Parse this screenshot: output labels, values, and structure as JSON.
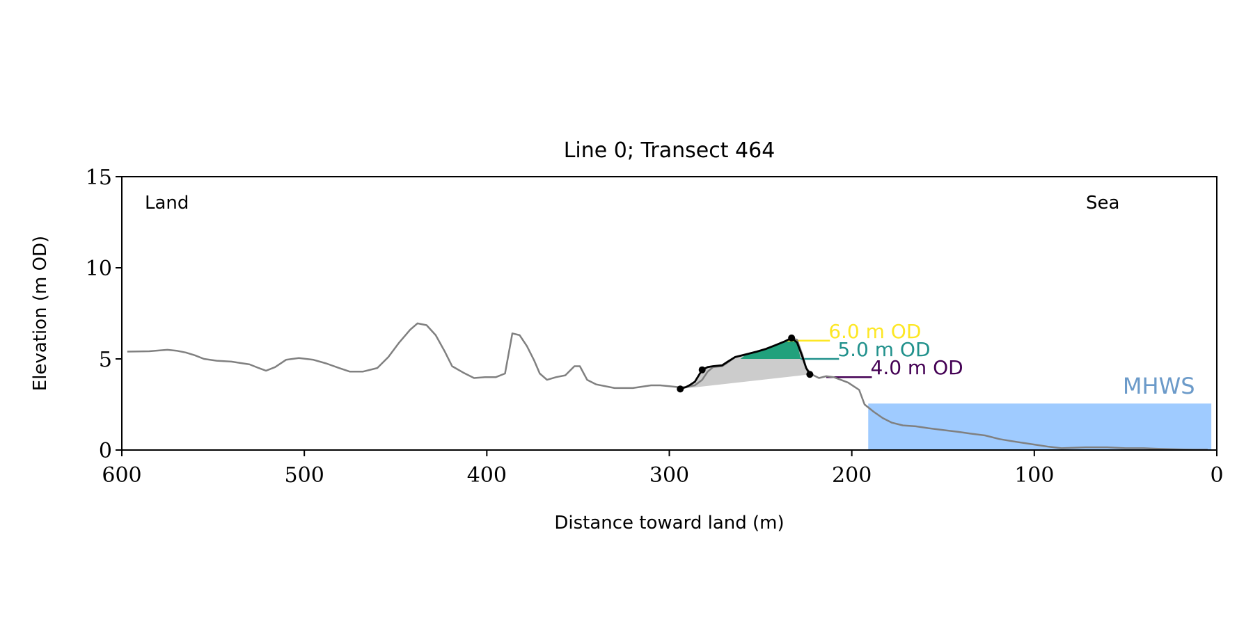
{
  "chart_data": {
    "type": "line",
    "title": "Line 0; Transect 464",
    "xlabel": "Distance toward land (m)",
    "ylabel": "Elevation (m OD)",
    "xlim": [
      600,
      0
    ],
    "ylim": [
      0,
      15
    ],
    "x_ticks": [
      600,
      500,
      400,
      300,
      200,
      100,
      0
    ],
    "y_ticks": [
      0,
      5,
      10,
      15
    ],
    "grid": false,
    "annotations": {
      "land": "Land",
      "sea": "Sea"
    },
    "profile": {
      "color": "#808080",
      "points": [
        [
          597,
          5.4
        ],
        [
          585,
          5.42
        ],
        [
          575,
          5.5
        ],
        [
          570,
          5.45
        ],
        [
          565,
          5.35
        ],
        [
          560,
          5.2
        ],
        [
          555,
          5.0
        ],
        [
          548,
          4.9
        ],
        [
          540,
          4.85
        ],
        [
          530,
          4.7
        ],
        [
          525,
          4.5
        ],
        [
          521,
          4.35
        ],
        [
          516,
          4.55
        ],
        [
          510,
          4.95
        ],
        [
          503,
          5.05
        ],
        [
          495,
          4.95
        ],
        [
          488,
          4.75
        ],
        [
          481,
          4.5
        ],
        [
          475,
          4.3
        ],
        [
          468,
          4.3
        ],
        [
          460,
          4.5
        ],
        [
          454,
          5.1
        ],
        [
          448,
          5.9
        ],
        [
          442,
          6.6
        ],
        [
          438,
          6.95
        ],
        [
          433,
          6.85
        ],
        [
          428,
          6.3
        ],
        [
          423,
          5.4
        ],
        [
          419,
          4.6
        ],
        [
          413,
          4.25
        ],
        [
          407,
          3.95
        ],
        [
          401,
          4.0
        ],
        [
          395,
          4.0
        ],
        [
          390,
          4.2
        ],
        [
          386,
          6.4
        ],
        [
          382,
          6.3
        ],
        [
          378,
          5.7
        ],
        [
          374,
          4.9
        ],
        [
          371,
          4.2
        ],
        [
          367,
          3.85
        ],
        [
          362,
          4.0
        ],
        [
          357,
          4.1
        ],
        [
          352,
          4.6
        ],
        [
          349,
          4.6
        ],
        [
          345,
          3.85
        ],
        [
          340,
          3.6
        ],
        [
          330,
          3.4
        ],
        [
          320,
          3.4
        ],
        [
          310,
          3.55
        ],
        [
          305,
          3.55
        ],
        [
          300,
          3.5
        ],
        [
          295,
          3.45
        ],
        [
          291,
          3.45
        ],
        [
          289,
          3.5
        ],
        [
          286,
          3.55
        ],
        [
          282,
          3.85
        ],
        [
          279,
          4.3
        ],
        [
          276,
          4.55
        ],
        [
          271,
          4.6
        ],
        [
          268,
          4.8
        ],
        [
          264,
          5.1
        ],
        [
          258,
          5.25
        ],
        [
          252,
          5.4
        ],
        [
          247,
          5.55
        ],
        [
          242,
          5.75
        ],
        [
          237,
          5.95
        ],
        [
          233,
          6.15
        ],
        [
          230,
          6.05
        ],
        [
          227,
          5.2
        ],
        [
          225,
          4.5
        ],
        [
          222,
          4.15
        ],
        [
          218,
          3.95
        ],
        [
          214,
          4.05
        ],
        [
          210,
          4.0
        ],
        [
          206,
          3.85
        ],
        [
          202,
          3.7
        ],
        [
          199,
          3.5
        ],
        [
          196,
          3.3
        ],
        [
          193,
          2.5
        ],
        [
          188,
          2.1
        ],
        [
          183,
          1.75
        ],
        [
          178,
          1.5
        ],
        [
          172,
          1.35
        ],
        [
          165,
          1.3
        ],
        [
          158,
          1.2
        ],
        [
          150,
          1.1
        ],
        [
          142,
          1.0
        ],
        [
          135,
          0.9
        ],
        [
          127,
          0.8
        ],
        [
          119,
          0.6
        ],
        [
          110,
          0.45
        ],
        [
          100,
          0.3
        ],
        [
          92,
          0.18
        ],
        [
          85,
          0.1
        ],
        [
          80,
          0.12
        ],
        [
          72,
          0.15
        ],
        [
          60,
          0.15
        ],
        [
          50,
          0.1
        ],
        [
          40,
          0.1
        ],
        [
          32,
          0.07
        ],
        [
          25,
          0.05
        ],
        [
          18,
          0.03
        ],
        [
          12,
          0.02
        ],
        [
          5,
          0.02
        ]
      ]
    },
    "dune": {
      "color": "#000000",
      "toe": [
        294,
        3.35
      ],
      "crest": [
        233,
        6.15
      ],
      "back": [
        223,
        4.15
      ],
      "marker_points": [
        [
          294,
          3.35
        ],
        [
          282,
          4.4
        ],
        [
          233,
          6.15
        ],
        [
          223,
          4.15
        ]
      ],
      "points": [
        [
          294,
          3.35
        ],
        [
          291,
          3.45
        ],
        [
          289,
          3.55
        ],
        [
          286,
          3.75
        ],
        [
          282,
          4.4
        ],
        [
          279,
          4.55
        ],
        [
          276,
          4.6
        ],
        [
          271,
          4.65
        ],
        [
          268,
          4.85
        ],
        [
          264,
          5.1
        ],
        [
          258,
          5.25
        ],
        [
          252,
          5.4
        ],
        [
          247,
          5.55
        ],
        [
          242,
          5.75
        ],
        [
          237,
          5.95
        ],
        [
          233,
          6.15
        ],
        [
          230,
          5.9
        ],
        [
          227,
          5.1
        ],
        [
          225,
          4.5
        ],
        [
          223,
          4.15
        ]
      ]
    },
    "fills": {
      "volume": {
        "color": "#cccccc",
        "base": [
          [
            294,
            3.35
          ],
          [
            223,
            4.15
          ]
        ]
      },
      "above_5m": {
        "level": 5.0,
        "x_range": [
          261,
          228
        ],
        "color": "#21a17c"
      }
    },
    "levels": [
      {
        "label": "6.0 m OD",
        "value": 6.0,
        "x_start": 236,
        "x_end": 212,
        "color": "#fde725"
      },
      {
        "label": "5.0 m OD",
        "value": 5.0,
        "x_start": 228,
        "x_end": 207,
        "color": "#21918c"
      },
      {
        "label": "4.0 m OD",
        "value": 4.0,
        "x_start": 214,
        "x_end": 189,
        "color": "#440154"
      }
    ],
    "mhws": {
      "label": "MHWS",
      "value": 2.55,
      "x_range": [
        191,
        3
      ],
      "fill": "#9fcbff",
      "label_color": "#6b9ac9"
    }
  }
}
